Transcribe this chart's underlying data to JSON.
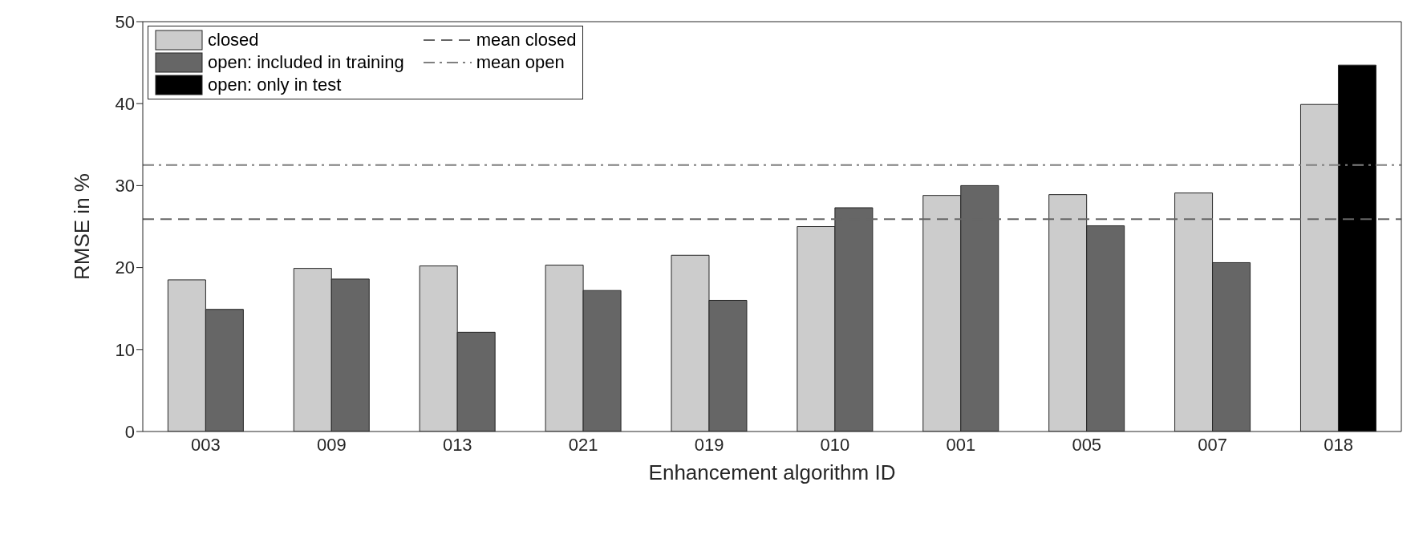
{
  "chart_data": {
    "type": "bar",
    "xlabel": "Enhancement algorithm ID",
    "ylabel": "RMSE in %",
    "categories": [
      "003",
      "009",
      "013",
      "021",
      "019",
      "010",
      "001",
      "005",
      "007",
      "018"
    ],
    "series": [
      {
        "name": "closed",
        "color": "#cccccc",
        "values": [
          18.5,
          19.9,
          20.2,
          20.3,
          21.5,
          25.0,
          28.8,
          28.9,
          29.1,
          39.9
        ]
      },
      {
        "name": "open: included in training",
        "color": "#666666",
        "values": [
          14.9,
          18.6,
          12.1,
          17.2,
          16.0,
          27.3,
          30.0,
          25.1,
          20.6,
          null
        ]
      },
      {
        "name": "open: only in test",
        "color": "#000000",
        "values": [
          null,
          null,
          null,
          null,
          null,
          null,
          null,
          null,
          null,
          44.7
        ]
      }
    ],
    "ref_lines": [
      {
        "axis": "y",
        "value": 25.9,
        "label": "mean closed",
        "color": "#666666",
        "line_style": "dashed"
      },
      {
        "axis": "y",
        "value": 32.5,
        "label": "mean open",
        "color": "#808080",
        "line_style": "dashdot"
      }
    ],
    "ylim": [
      0,
      50
    ],
    "yticks": [
      0,
      10,
      20,
      30,
      40,
      50
    ],
    "legend": "top left"
  }
}
